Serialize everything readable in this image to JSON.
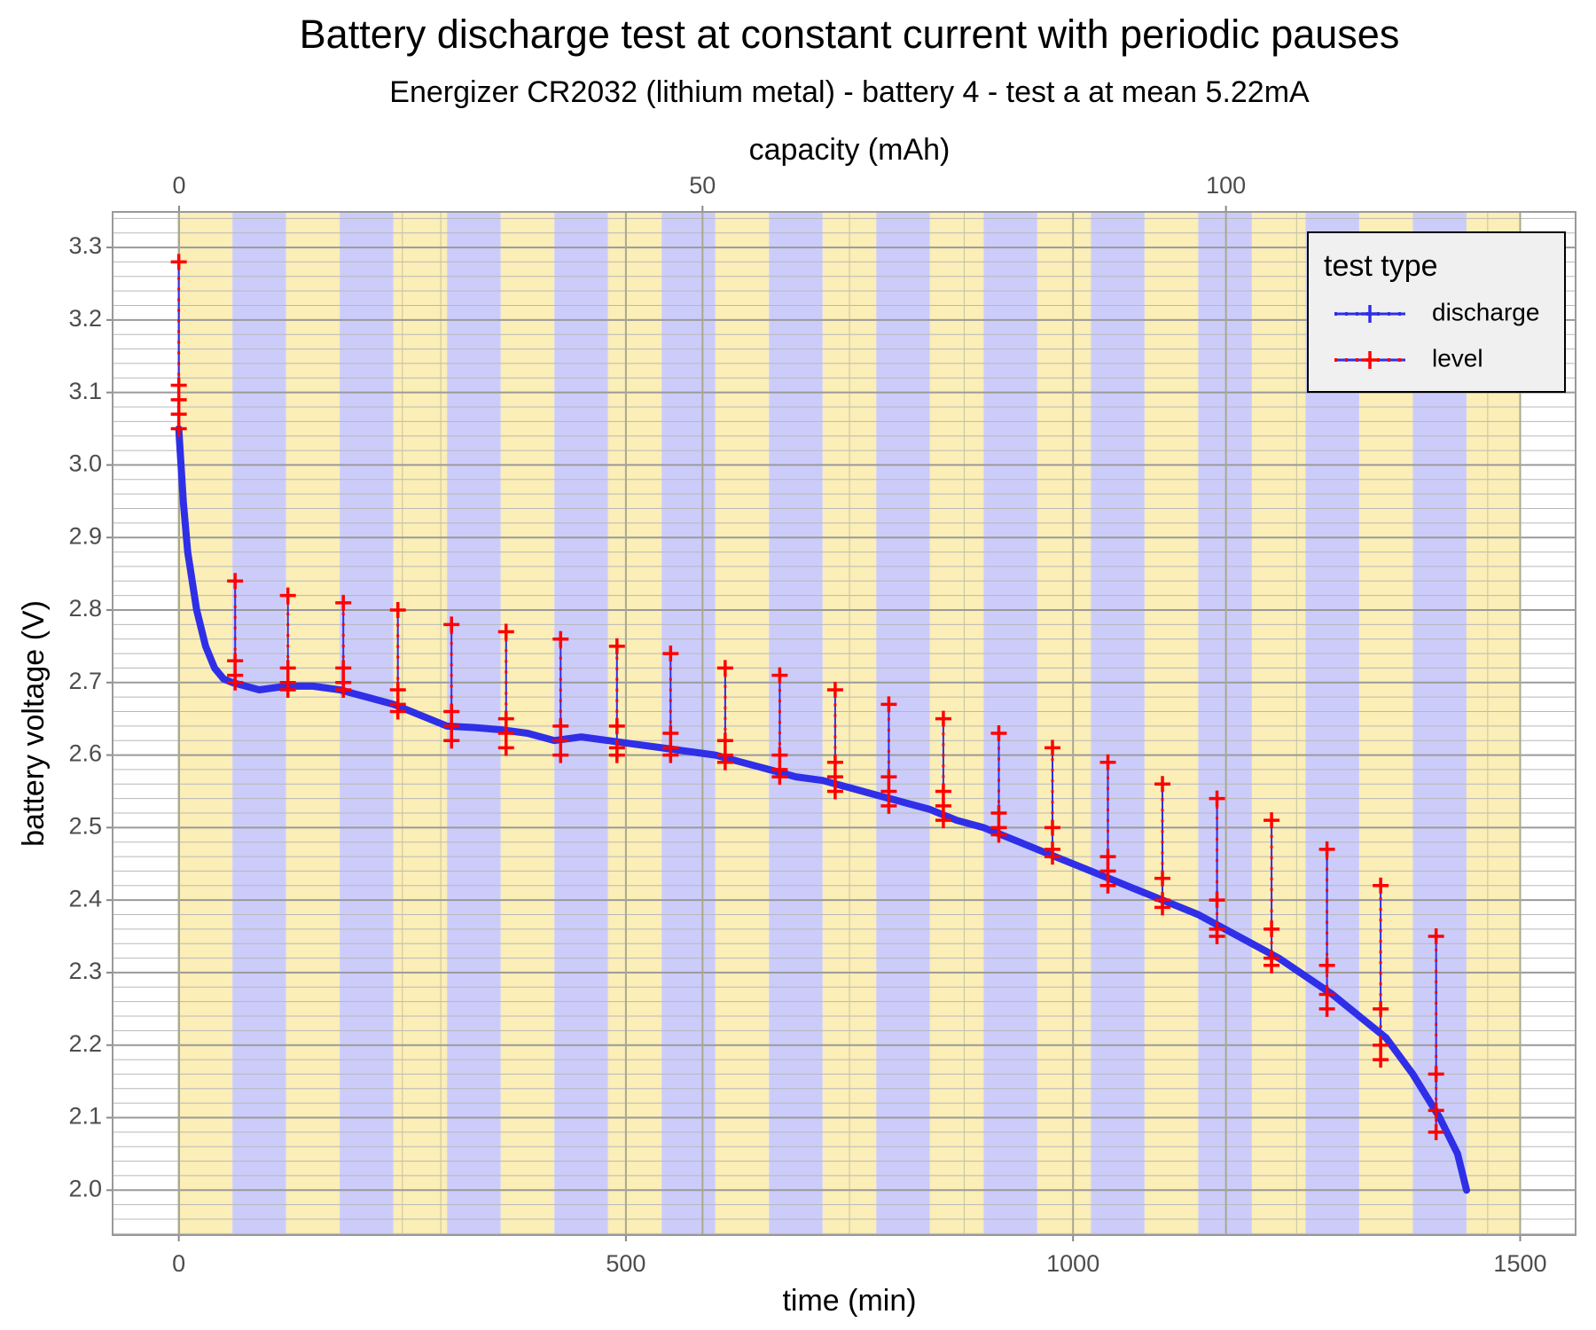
{
  "chart_data": {
    "type": "line",
    "title": "Battery discharge test at constant current with periodic pauses",
    "subtitle": "Energizer CR2032 (lithium metal) - battery 4 - test a at mean 5.22mA",
    "x_label": "time (min)",
    "x2_label": "capacity (mAh)",
    "y_label": "battery voltage (V)",
    "xlim": [
      -74,
      1562
    ],
    "xticks": [
      0,
      500,
      1000,
      1500
    ],
    "x_minor_step": 250,
    "x2lim": [
      -6.35,
      133.4
    ],
    "x2ticks": [
      0,
      50,
      100
    ],
    "x2_minor_step": 25,
    "ylim": [
      1.938,
      3.349
    ],
    "yticks": [
      {
        "value": 2,
        "label": "2.0"
      },
      2.1,
      2.2,
      2.3,
      2.4,
      2.5,
      2.6,
      2.7,
      2.8,
      2.9,
      {
        "value": 3,
        "label": "3.0"
      },
      3.1,
      3.2,
      3.3
    ],
    "y_minor_step": 0.02,
    "grid": true,
    "shading": {
      "start": 0,
      "end": 1500,
      "width": 60,
      "colors": [
        "#fbeeb6",
        "#ccccfb"
      ]
    },
    "legend": "top-right",
    "legend_title": "test type",
    "series": [
      {
        "name": "discharge",
        "color": "#2f2fe8",
        "x": [
          0,
          5,
          10,
          20,
          30,
          40,
          50,
          60,
          90,
          120,
          150,
          180,
          210,
          240,
          270,
          300,
          330,
          360,
          390,
          420,
          450,
          480,
          510,
          540,
          570,
          600,
          630,
          660,
          690,
          720,
          750,
          780,
          810,
          840,
          870,
          900,
          930,
          960,
          990,
          1020,
          1050,
          1080,
          1110,
          1140,
          1170,
          1200,
          1230,
          1260,
          1290,
          1320,
          1350,
          1380,
          1410,
          1430,
          1440
        ],
        "values": [
          3.05,
          2.95,
          2.88,
          2.8,
          2.75,
          2.72,
          2.705,
          2.7,
          2.69,
          2.695,
          2.695,
          2.69,
          2.68,
          2.67,
          2.655,
          2.64,
          2.638,
          2.635,
          2.63,
          2.62,
          2.625,
          2.62,
          2.615,
          2.61,
          2.605,
          2.6,
          2.59,
          2.58,
          2.57,
          2.565,
          2.555,
          2.545,
          2.535,
          2.525,
          2.51,
          2.5,
          2.485,
          2.47,
          2.455,
          2.44,
          2.425,
          2.41,
          2.395,
          2.38,
          2.36,
          2.34,
          2.32,
          2.295,
          2.27,
          2.24,
          2.21,
          2.16,
          2.1,
          2.05,
          2.0
        ]
      },
      {
        "name": "level",
        "color": "#ff0000",
        "x": [
          0,
          0,
          0,
          0,
          0,
          null,
          63,
          63,
          63,
          63,
          null,
          122,
          122,
          122,
          122,
          null,
          184,
          184,
          184,
          184,
          null,
          245,
          245,
          245,
          245,
          null,
          305,
          305,
          305,
          305,
          null,
          366,
          366,
          366,
          366,
          null,
          427,
          427,
          427,
          427,
          null,
          490,
          490,
          490,
          490,
          null,
          550,
          550,
          550,
          550,
          null,
          611,
          611,
          611,
          611,
          null,
          672,
          672,
          672,
          672,
          null,
          734,
          734,
          734,
          734,
          null,
          794,
          794,
          794,
          794,
          null,
          855,
          855,
          855,
          855,
          null,
          917,
          917,
          917,
          917,
          null,
          977,
          977,
          977,
          977,
          null,
          1039,
          1039,
          1039,
          1039,
          null,
          1100,
          1100,
          1100,
          1100,
          null,
          1161,
          1161,
          1161,
          1161,
          null,
          1222,
          1222,
          1222,
          1222,
          null,
          1284,
          1284,
          1284,
          1284,
          null,
          1344,
          1344,
          1344,
          1344,
          null,
          1406,
          1406,
          1406,
          1406
        ],
        "values": [
          3.05,
          3.07,
          3.09,
          3.11,
          3.28,
          null,
          2.7,
          2.71,
          2.73,
          2.84,
          null,
          2.69,
          2.7,
          2.72,
          2.82,
          null,
          2.69,
          2.7,
          2.72,
          2.81,
          null,
          2.66,
          2.67,
          2.69,
          2.8,
          null,
          2.62,
          2.64,
          2.66,
          2.78,
          null,
          2.61,
          2.63,
          2.65,
          2.77,
          null,
          2.6,
          2.62,
          2.64,
          2.76,
          null,
          2.6,
          2.61,
          2.64,
          2.75,
          null,
          2.6,
          2.61,
          2.63,
          2.74,
          null,
          2.59,
          2.6,
          2.62,
          2.72,
          null,
          2.57,
          2.58,
          2.6,
          2.71,
          null,
          2.55,
          2.57,
          2.59,
          2.69,
          null,
          2.53,
          2.55,
          2.57,
          2.67,
          null,
          2.51,
          2.53,
          2.55,
          2.65,
          null,
          2.49,
          2.5,
          2.52,
          2.63,
          null,
          2.46,
          2.47,
          2.5,
          2.61,
          null,
          2.42,
          2.44,
          2.46,
          2.59,
          null,
          2.39,
          2.4,
          2.43,
          2.56,
          null,
          2.35,
          2.36,
          2.4,
          2.54,
          null,
          2.31,
          2.32,
          2.36,
          2.51,
          null,
          2.25,
          2.27,
          2.31,
          2.47,
          null,
          2.18,
          2.2,
          2.25,
          2.42,
          null,
          2.08,
          2.11,
          2.16,
          2.35
        ]
      }
    ]
  }
}
